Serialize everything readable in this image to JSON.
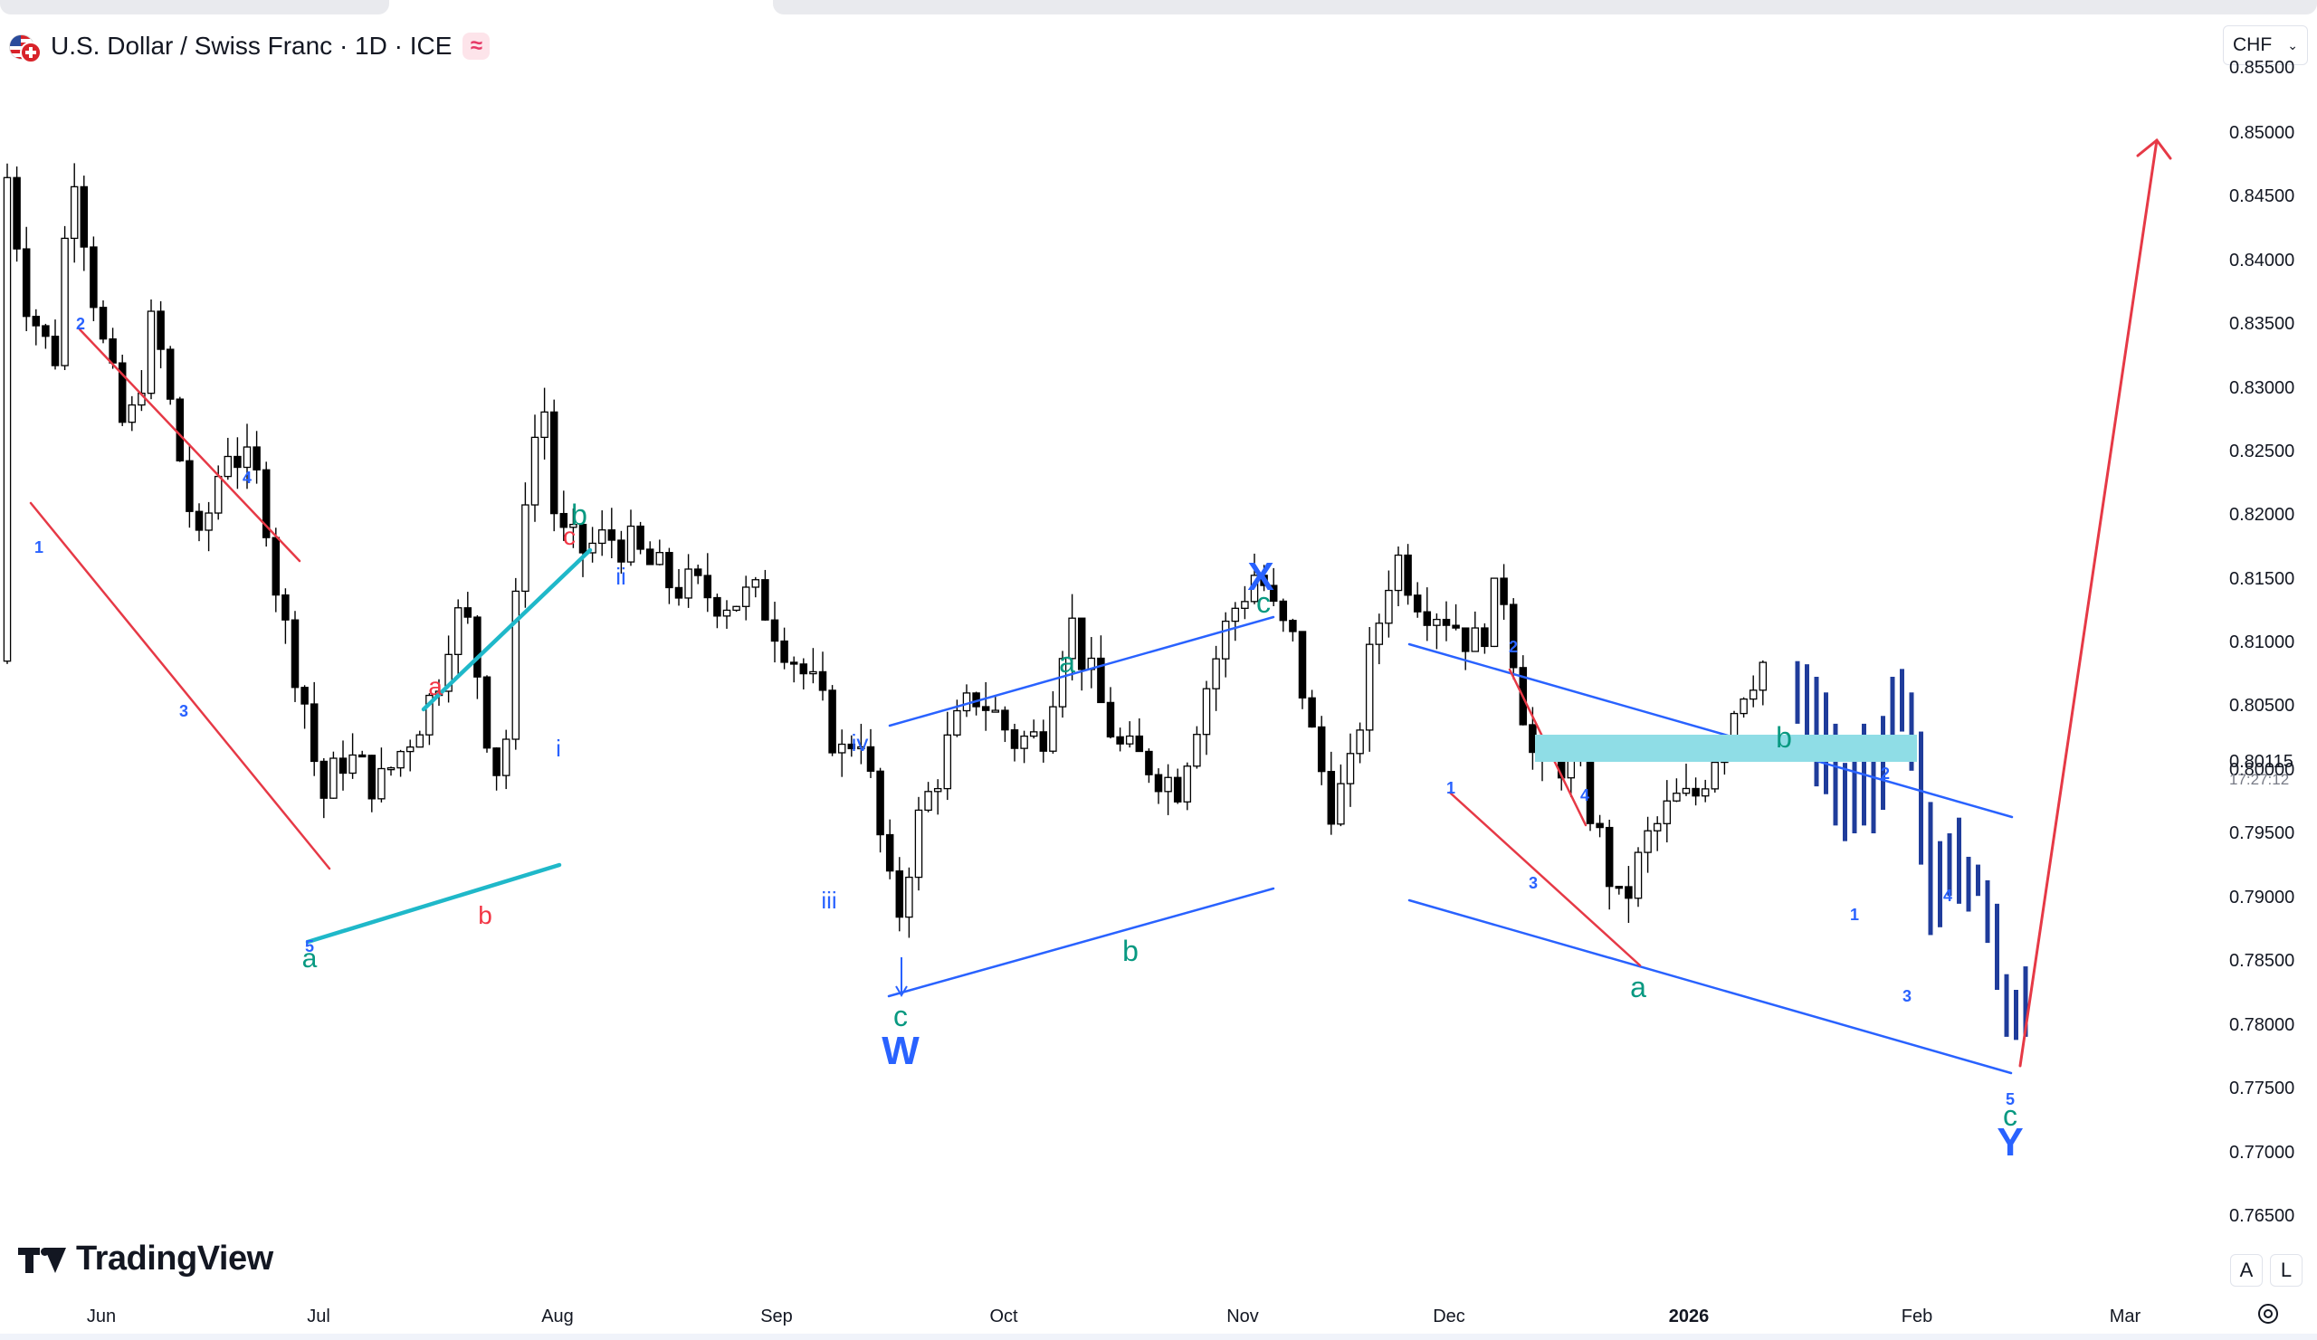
{
  "header": {
    "title": "U.S. Dollar / Swiss Franc · 1D · ICE",
    "badge": "≈",
    "flag_icon": "usd-chf-flag-icon"
  },
  "currency_select": {
    "value": "CHF"
  },
  "price_axis": {
    "labels": [
      "0.85500",
      "0.85000",
      "0.84500",
      "0.84000",
      "0.83500",
      "0.83000",
      "0.82500",
      "0.82000",
      "0.81500",
      "0.81000",
      "0.80500",
      "0.80000",
      "0.79500",
      "0.79000",
      "0.78500",
      "0.78000",
      "0.77500",
      "0.77000",
      "0.76500"
    ],
    "last_price": "0.80115",
    "countdown": "17:27:12"
  },
  "time_axis": {
    "labels": [
      "Jun",
      "Jul",
      "Aug",
      "Sep",
      "Oct",
      "Nov",
      "Dec",
      "2026",
      "Feb",
      "Mar"
    ]
  },
  "wave_labels": [
    {
      "text": "2",
      "color": "#2962ff",
      "weight": "bold",
      "size": 18
    },
    {
      "text": "1",
      "color": "#2962ff",
      "weight": "bold",
      "size": 18
    },
    {
      "text": "3",
      "color": "#2962ff",
      "weight": "bold",
      "size": 18
    },
    {
      "text": "4",
      "color": "#2962ff",
      "weight": "bold",
      "size": 18
    },
    {
      "text": "5",
      "color": "#2962ff",
      "weight": "bold",
      "size": 18
    },
    {
      "text": "a",
      "color": "#089981",
      "weight": "normal",
      "size": 30
    },
    {
      "text": "a",
      "color": "#f23645",
      "weight": "normal",
      "size": 28
    },
    {
      "text": "b",
      "color": "#f23645",
      "weight": "normal",
      "size": 28
    },
    {
      "text": "c",
      "color": "#f23645",
      "weight": "normal",
      "size": 28
    },
    {
      "text": "b",
      "color": "#089981",
      "weight": "normal",
      "size": 32
    },
    {
      "text": "i",
      "color": "#2962ff",
      "weight": "normal",
      "size": 26
    },
    {
      "text": "ii",
      "color": "#2962ff",
      "weight": "normal",
      "size": 26
    },
    {
      "text": "iii",
      "color": "#2962ff",
      "weight": "normal",
      "size": 26
    },
    {
      "text": "iv",
      "color": "#2962ff",
      "weight": "normal",
      "size": 26
    },
    {
      "text": "c",
      "color": "#089981",
      "weight": "normal",
      "size": 32
    },
    {
      "text": "W",
      "color": "#2962ff",
      "weight": "bold",
      "size": 44
    },
    {
      "text": "a",
      "color": "#089981",
      "weight": "normal",
      "size": 32
    },
    {
      "text": "b",
      "color": "#089981",
      "weight": "normal",
      "size": 32
    },
    {
      "text": "c",
      "color": "#089981",
      "weight": "normal",
      "size": 32
    },
    {
      "text": "X",
      "color": "#2962ff",
      "weight": "bold",
      "size": 44
    },
    {
      "text": "1",
      "color": "#2962ff",
      "weight": "bold",
      "size": 18
    },
    {
      "text": "2",
      "color": "#2962ff",
      "weight": "bold",
      "size": 18
    },
    {
      "text": "3",
      "color": "#2962ff",
      "weight": "bold",
      "size": 18
    },
    {
      "text": "4",
      "color": "#2962ff",
      "weight": "bold",
      "size": 18
    },
    {
      "text": "a",
      "color": "#089981",
      "weight": "normal",
      "size": 32
    },
    {
      "text": "b",
      "color": "#089981",
      "weight": "normal",
      "size": 32
    },
    {
      "text": "1",
      "color": "#2962ff",
      "weight": "bold",
      "size": 18
    },
    {
      "text": "2",
      "color": "#2962ff",
      "weight": "bold",
      "size": 18
    },
    {
      "text": "3",
      "color": "#2962ff",
      "weight": "bold",
      "size": 18
    },
    {
      "text": "4",
      "color": "#2962ff",
      "weight": "bold",
      "size": 18
    },
    {
      "text": "5",
      "color": "#2962ff",
      "weight": "bold",
      "size": 18
    },
    {
      "text": "c",
      "color": "#089981",
      "weight": "normal",
      "size": 32
    },
    {
      "text": "Y",
      "color": "#2962ff",
      "weight": "bold",
      "size": 44
    }
  ],
  "branding": {
    "name": "TradingView",
    "logo_icon": "tradingview-logo-icon"
  },
  "scale_buttons": {
    "auto": "A",
    "log": "L"
  },
  "icons": {
    "settings": "settings-gear-icon",
    "chevron": "chevron-down-icon"
  },
  "colors": {
    "candle": "#000000",
    "projection_bar": "#1f3c9b",
    "red_line": "#e63946",
    "teal_line": "#1fb8c9",
    "blue_line": "#2962ff",
    "zone": "#8fdde6",
    "green_label": "#089981"
  }
}
